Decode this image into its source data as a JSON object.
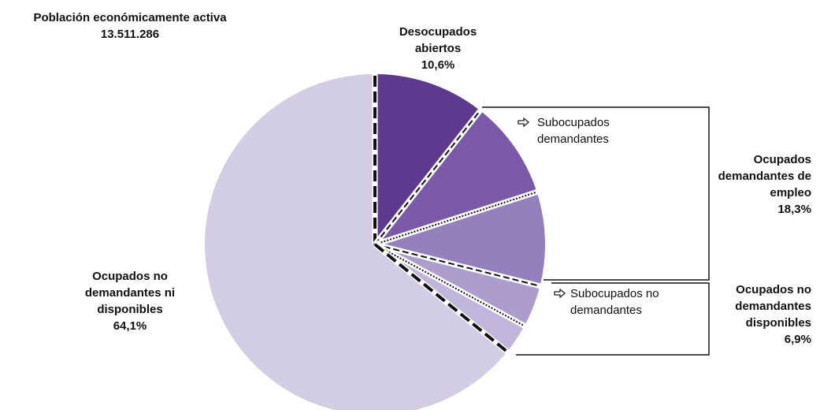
{
  "chart_data": {
    "type": "pie",
    "title": "Población económicamente activa",
    "subtitle": "13.511.286",
    "categories": [
      "Desocupados abiertos",
      "Subocupados demandantes",
      null,
      "Subocupados no demandantes",
      null,
      "Ocupados no demandantes ni disponibles"
    ],
    "values": [
      10.6,
      9.4,
      8.9,
      4.0,
      2.9,
      64.1
    ],
    "value_labels": [
      "10,6%",
      null,
      null,
      null,
      null,
      "64,1%"
    ],
    "colors": [
      "#5e3a8e",
      "#7a5aa8",
      "#9480bc",
      "#ac9dcc",
      "#c0b5da",
      "#d2cce5"
    ],
    "groups": [
      {
        "name": "Ocupados demandantes de empleo",
        "value": 18.3,
        "value_label": "18,3%"
      },
      {
        "name": "Ocupados no demandantes disponibles",
        "value": 6.9,
        "value_label": "6,9%"
      }
    ]
  }
}
